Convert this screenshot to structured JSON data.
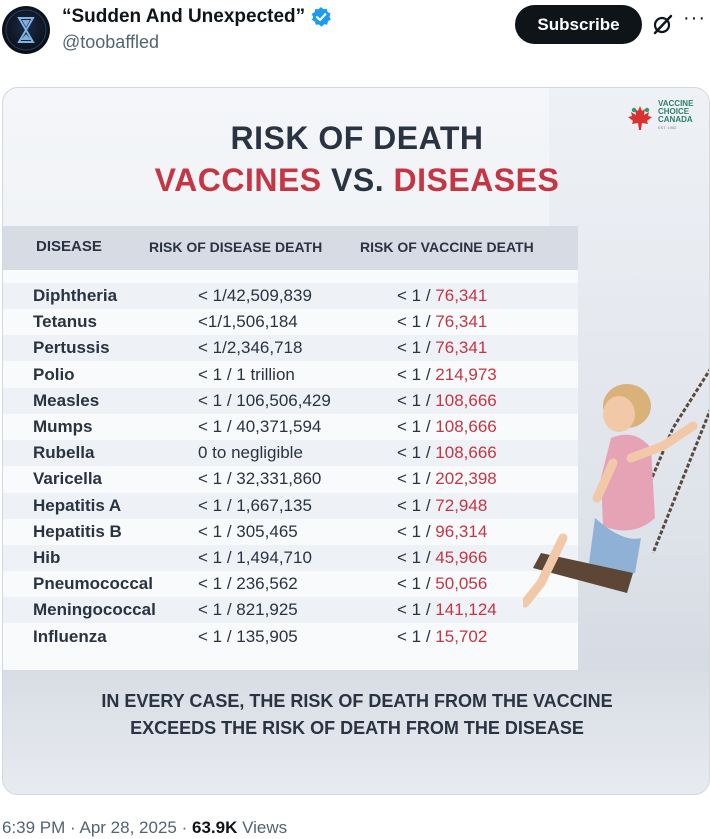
{
  "author": {
    "display_name": "“Sudden And Unexpected”",
    "handle": "@toobaffled",
    "verified_icon": "verified-badge-icon",
    "avatar_icon": "hourglass-avatar"
  },
  "actions": {
    "subscribe_label": "Subscribe",
    "grok_icon": "grok-icon",
    "more_label": "···"
  },
  "infographic": {
    "logo_text": "VACCINE CHOICE CANADA",
    "logo_sub": "EST. 1982",
    "title_line1": "RISK OF DEATH",
    "title_line2_a": "VACCINES",
    "title_line2_b": "VS.",
    "title_line2_c": "DISEASES",
    "headers": {
      "disease": "DISEASE",
      "disease_risk": "RISK OF DISEASE DEATH",
      "vaccine_risk": "RISK OF VACCINE DEATH"
    },
    "rows": [
      {
        "disease": "Diphtheria",
        "disease_risk": "< 1/42,509,839",
        "vaccine_prefix": "< 1 / ",
        "vaccine_value": "76,341"
      },
      {
        "disease": "Tetanus",
        "disease_risk": "<1/1,506,184",
        "vaccine_prefix": "< 1 / ",
        "vaccine_value": "76,341"
      },
      {
        "disease": "Pertussis",
        "disease_risk": "< 1/2,346,718",
        "vaccine_prefix": "< 1 / ",
        "vaccine_value": "76,341"
      },
      {
        "disease": "Polio",
        "disease_risk": "< 1 / 1 trillion",
        "vaccine_prefix": "< 1 / ",
        "vaccine_value": "214,973"
      },
      {
        "disease": "Measles",
        "disease_risk": "< 1 / 106,506,429",
        "vaccine_prefix": "< 1 / ",
        "vaccine_value": "108,666"
      },
      {
        "disease": "Mumps",
        "disease_risk": "< 1 / 40,371,594",
        "vaccine_prefix": "< 1 / ",
        "vaccine_value": "108,666"
      },
      {
        "disease": "Rubella",
        "disease_risk": "0 to negligible",
        "vaccine_prefix": "< 1 / ",
        "vaccine_value": "108,666"
      },
      {
        "disease": "Varicella",
        "disease_risk": "< 1 / 32,331,860",
        "vaccine_prefix": "< 1 / ",
        "vaccine_value": "202,398"
      },
      {
        "disease": "Hepatitis A",
        "disease_risk": "< 1 / 1,667,135",
        "vaccine_prefix": "< 1 / ",
        "vaccine_value": "72,948"
      },
      {
        "disease": "Hepatitis B",
        "disease_risk": "< 1 / 305,465",
        "vaccine_prefix": "< 1 / ",
        "vaccine_value": "96,314"
      },
      {
        "disease": "Hib",
        "disease_risk": "< 1 / 1,494,710",
        "vaccine_prefix": "< 1 / ",
        "vaccine_value": "45,966"
      },
      {
        "disease": "Pneumococcal",
        "disease_risk": "< 1 / 236,562",
        "vaccine_prefix": "< 1 / ",
        "vaccine_value": "50,056"
      },
      {
        "disease": "Meningococcal",
        "disease_risk": "< 1 / 821,925",
        "vaccine_prefix": "< 1 / ",
        "vaccine_value": "141,124"
      },
      {
        "disease": "Influenza",
        "disease_risk": "< 1 / 135,905",
        "vaccine_prefix": "< 1 / ",
        "vaccine_value": "15,702"
      }
    ],
    "footer_line1": "IN EVERY CASE, THE RISK OF DEATH FROM THE VACCINE",
    "footer_line2": "EXCEEDS THE RISK OF DEATH FROM THE DISEASE",
    "accent_color": "#c43644"
  },
  "meta": {
    "time": "6:39 PM",
    "date": "Apr 28, 2025",
    "views_count": "63.9K",
    "views_label": "Views"
  }
}
